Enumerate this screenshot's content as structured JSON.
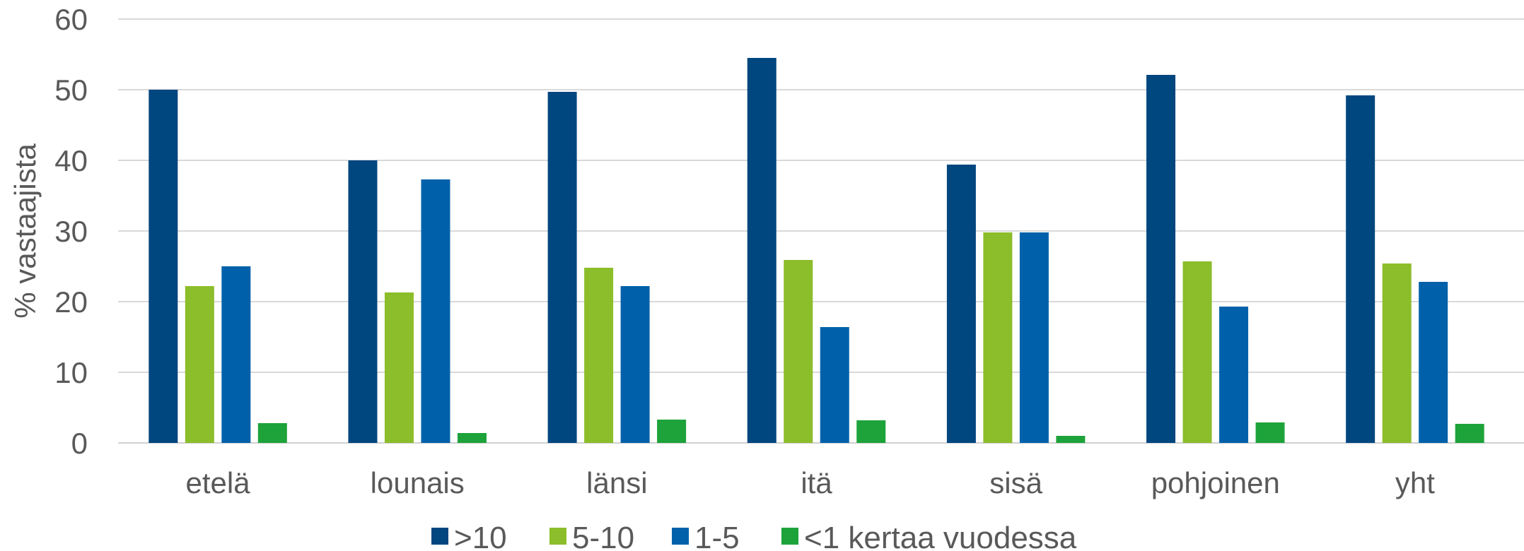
{
  "chart_data": {
    "type": "bar",
    "title": "",
    "xlabel": "",
    "ylabel": "% vastaajista",
    "ylim": [
      0,
      60
    ],
    "yticks": [
      0,
      10,
      20,
      30,
      40,
      50,
      60
    ],
    "grid": true,
    "legend_position": "bottom",
    "categories": [
      "etelä",
      "lounais",
      "länsi",
      "itä",
      "sisä",
      "pohjoinen",
      "yht"
    ],
    "series": [
      {
        "name": ">10",
        "color": "#00467F",
        "values": [
          50.0,
          40.0,
          49.7,
          54.5,
          39.4,
          52.1,
          49.2
        ]
      },
      {
        "name": "5-10",
        "color": "#8CBD2A",
        "values": [
          22.2,
          21.3,
          24.8,
          25.9,
          29.8,
          25.7,
          25.4
        ]
      },
      {
        "name": "1-5",
        "color": "#0061AA",
        "values": [
          25.0,
          37.3,
          22.2,
          16.4,
          29.8,
          19.3,
          22.8
        ]
      },
      {
        "name": "<1 kertaa vuodessa",
        "color": "#1DA33A",
        "values": [
          2.8,
          1.4,
          3.3,
          3.2,
          1.0,
          2.9,
          2.7
        ]
      }
    ]
  }
}
